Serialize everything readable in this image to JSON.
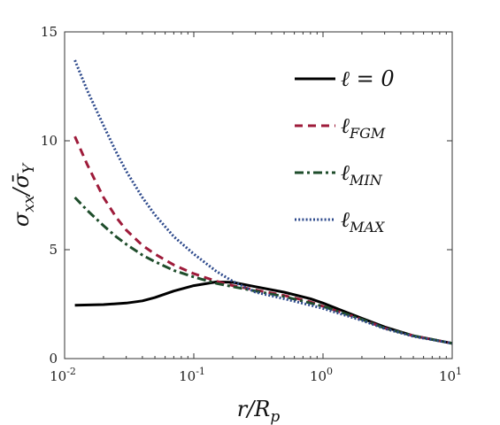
{
  "chart_data": {
    "type": "line",
    "title": "",
    "xlabel": "r/R_p",
    "ylabel": "σ_xx/σ̄_Y",
    "x_scale": "log",
    "xlim": [
      0.01,
      10
    ],
    "ylim": [
      0,
      15
    ],
    "x_ticks": [
      {
        "value": 0.01,
        "base": "10",
        "exp": "-2"
      },
      {
        "value": 0.1,
        "base": "10",
        "exp": "-1"
      },
      {
        "value": 1,
        "base": "10",
        "exp": "0"
      },
      {
        "value": 10,
        "base": "10",
        "exp": "1"
      }
    ],
    "y_ticks": [
      {
        "value": 0,
        "label": "0"
      },
      {
        "value": 5,
        "label": "5"
      },
      {
        "value": 10,
        "label": "10"
      },
      {
        "value": 15,
        "label": "15"
      }
    ],
    "grid": false,
    "legend_position": "top-right",
    "series": [
      {
        "name": "ℓ = 0",
        "legend_main": "ℓ = 0",
        "legend_sub": "",
        "color": "#000000",
        "style": "solid",
        "x": [
          0.012,
          0.02,
          0.03,
          0.04,
          0.05,
          0.07,
          0.1,
          0.15,
          0.2,
          0.3,
          0.5,
          0.8,
          1,
          2,
          3,
          5,
          10
        ],
        "y": [
          2.45,
          2.48,
          2.55,
          2.65,
          2.8,
          3.1,
          3.35,
          3.52,
          3.5,
          3.3,
          3.05,
          2.75,
          2.55,
          1.85,
          1.45,
          1.05,
          0.7
        ]
      },
      {
        "name": "ℓFGM",
        "legend_main": "ℓ",
        "legend_sub": "FGM",
        "color": "#9e1b3a",
        "style": "dashed",
        "x": [
          0.012,
          0.015,
          0.02,
          0.025,
          0.03,
          0.04,
          0.05,
          0.07,
          0.1,
          0.15,
          0.2,
          0.3,
          0.5,
          0.8,
          1,
          2,
          3,
          5,
          10
        ],
        "y": [
          10.2,
          8.9,
          7.4,
          6.5,
          5.9,
          5.2,
          4.8,
          4.3,
          3.9,
          3.55,
          3.35,
          3.15,
          2.9,
          2.6,
          2.4,
          1.8,
          1.4,
          1.05,
          0.7
        ]
      },
      {
        "name": "ℓMIN",
        "legend_main": "ℓ",
        "legend_sub": "MIN",
        "color": "#1e4d2b",
        "style": "dashdot",
        "x": [
          0.012,
          0.015,
          0.02,
          0.025,
          0.03,
          0.04,
          0.05,
          0.07,
          0.1,
          0.15,
          0.2,
          0.3,
          0.5,
          0.8,
          1,
          2,
          3,
          5,
          10
        ],
        "y": [
          7.4,
          6.8,
          6.1,
          5.6,
          5.25,
          4.75,
          4.45,
          4.05,
          3.75,
          3.45,
          3.3,
          3.1,
          2.85,
          2.55,
          2.4,
          1.8,
          1.4,
          1.05,
          0.7
        ]
      },
      {
        "name": "ℓMAX",
        "legend_main": "ℓ",
        "legend_sub": "MAX",
        "color": "#2e4a8c",
        "style": "dotted",
        "x": [
          0.012,
          0.015,
          0.02,
          0.025,
          0.03,
          0.04,
          0.05,
          0.07,
          0.1,
          0.15,
          0.2,
          0.3,
          0.5,
          0.8,
          1,
          2,
          3,
          5,
          10
        ],
        "y": [
          13.7,
          12.3,
          10.7,
          9.5,
          8.6,
          7.4,
          6.6,
          5.6,
          4.8,
          4.0,
          3.55,
          3.05,
          2.75,
          2.45,
          2.3,
          1.75,
          1.38,
          1.02,
          0.7
        ]
      }
    ]
  }
}
